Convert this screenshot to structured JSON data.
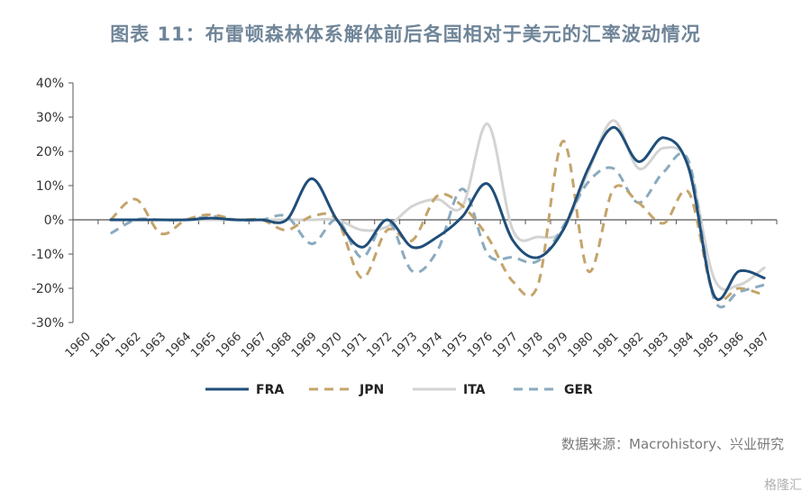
{
  "title": "图表 11：布雷顿森林体系解体前后各国相对于美元的汇率波动情况",
  "source": "数据来源：Macrohistory、兴业研究",
  "watermark": "格隆汇",
  "chart_data": {
    "type": "line",
    "x": [
      "1960",
      "1961",
      "1962",
      "1963",
      "1964",
      "1965",
      "1966",
      "1967",
      "1968",
      "1969",
      "1970",
      "1971",
      "1972",
      "1973",
      "1974",
      "1975",
      "1976",
      "1977",
      "1978",
      "1979",
      "1980",
      "1981",
      "1982",
      "1983",
      "1984",
      "1985",
      "1986",
      "1987"
    ],
    "ylim": [
      -30,
      40
    ],
    "yticks": [
      "-30%",
      "-20%",
      "-10%",
      "0%",
      "10%",
      "20%",
      "30%",
      "40%"
    ],
    "grid": false,
    "legend_position": "bottom",
    "series": [
      {
        "name": "FRA",
        "color": "#1f4e79",
        "dash": "solid",
        "values": [
          null,
          0,
          0,
          0,
          0,
          0.5,
          0,
          0,
          0,
          12,
          0,
          -8,
          0,
          -8,
          -5,
          1,
          10.5,
          -6,
          -11,
          -3,
          15,
          27,
          17,
          24,
          15,
          -22,
          -15,
          -17
        ]
      },
      {
        "name": "JPN",
        "color": "#c4a46b",
        "dash": "dashed",
        "values": [
          null,
          0,
          6,
          -4,
          0,
          1.5,
          0,
          0,
          -3,
          1,
          0,
          -17,
          -3,
          -6,
          7,
          4,
          -5,
          -18,
          -19,
          23,
          -15,
          9,
          5,
          -1,
          8,
          -22,
          -20,
          -22
        ]
      },
      {
        "name": "ITA",
        "color": "#d3d3d3",
        "dash": "solid",
        "values": [
          null,
          0,
          0,
          0,
          0,
          0,
          0,
          0,
          0,
          0,
          0,
          -3,
          -2,
          4,
          6,
          4,
          28,
          -3,
          -5,
          -3,
          14,
          29,
          15,
          21,
          16,
          -17,
          -19,
          -14
        ]
      },
      {
        "name": "GER",
        "color": "#8aaabf",
        "dash": "dashed",
        "values": [
          null,
          -4,
          0,
          0,
          0,
          1,
          0,
          0,
          1,
          -7,
          0,
          -11,
          0,
          -15,
          -9,
          9,
          -10,
          -11,
          -12,
          -2,
          11,
          15,
          5,
          14,
          17,
          -23,
          -21,
          -19
        ]
      }
    ]
  }
}
